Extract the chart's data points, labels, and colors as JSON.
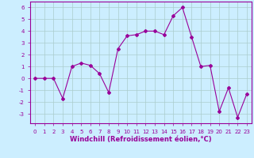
{
  "x": [
    0,
    1,
    2,
    3,
    4,
    5,
    6,
    7,
    8,
    9,
    10,
    11,
    12,
    13,
    14,
    15,
    16,
    17,
    18,
    19,
    20,
    21,
    22,
    23
  ],
  "y": [
    0.0,
    0.0,
    0.0,
    -1.7,
    1.0,
    1.3,
    1.1,
    0.4,
    -1.2,
    2.5,
    3.6,
    3.7,
    4.0,
    4.0,
    3.7,
    5.3,
    6.0,
    3.5,
    1.0,
    1.1,
    -2.8,
    -0.8,
    -3.3,
    -1.3
  ],
  "line_color": "#990099",
  "marker": "D",
  "markersize": 2.0,
  "linewidth": 0.8,
  "bg_color": "#cceeff",
  "grid_color": "#aacccc",
  "xlabel": "Windchill (Refroidissement éolien,°C)",
  "ylabel": "",
  "xlim": [
    -0.5,
    23.5
  ],
  "ylim": [
    -3.8,
    6.5
  ],
  "yticks": [
    -3,
    -2,
    -1,
    0,
    1,
    2,
    3,
    4,
    5,
    6
  ],
  "xticks": [
    0,
    1,
    2,
    3,
    4,
    5,
    6,
    7,
    8,
    9,
    10,
    11,
    12,
    13,
    14,
    15,
    16,
    17,
    18,
    19,
    20,
    21,
    22,
    23
  ],
  "tick_fontsize": 5.0,
  "xlabel_fontsize": 6.0,
  "text_color": "#990099",
  "border_color": "#990099"
}
